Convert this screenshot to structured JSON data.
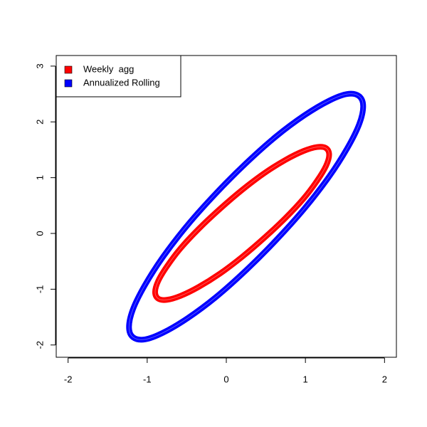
{
  "chart_data": {
    "type": "scatter",
    "xlim": [
      -2.15,
      2.15
    ],
    "ylim": [
      -2.22,
      3.19
    ],
    "xticks": [
      -2,
      -1,
      0,
      1,
      2
    ],
    "yticks": [
      -2,
      -1,
      0,
      1,
      2,
      3
    ],
    "legend": "top-left",
    "series": [
      {
        "name": "Weekly  agg",
        "color": "#ff0000",
        "x": [
          1.3,
          1.26,
          1.15,
          0.98,
          0.75,
          0.48,
          0.2,
          -0.08,
          -0.35,
          -0.58,
          -0.75,
          -0.86,
          -0.9,
          -0.86,
          -0.75,
          -0.58,
          -0.35,
          -0.08,
          0.2,
          0.48,
          0.75,
          0.98,
          1.15,
          1.26
        ],
        "values": [
          1.41,
          1.53,
          1.55,
          1.48,
          1.32,
          1.08,
          0.78,
          0.44,
          0.08,
          -0.27,
          -0.59,
          -0.85,
          -1.05,
          -1.17,
          -1.19,
          -1.12,
          -0.96,
          -0.72,
          -0.42,
          -0.08,
          0.28,
          0.63,
          0.95,
          1.21
        ]
      },
      {
        "name": "Annualized Rolling",
        "color": "#0000ff",
        "x": [
          1.73,
          1.68,
          1.53,
          1.3,
          0.99,
          0.63,
          0.25,
          -0.13,
          -0.49,
          -0.8,
          -1.03,
          -1.18,
          -1.23,
          -1.18,
          -1.03,
          -0.8,
          -0.49,
          -0.13,
          0.25,
          0.63,
          0.99,
          1.3,
          1.53,
          1.68
        ],
        "values": [
          2.28,
          2.46,
          2.5,
          2.38,
          2.12,
          1.74,
          1.26,
          0.72,
          0.15,
          -0.42,
          -0.93,
          -1.36,
          -1.68,
          -1.86,
          -1.9,
          -1.78,
          -1.52,
          -1.14,
          -0.66,
          -0.12,
          0.45,
          1.02,
          1.53,
          1.96
        ]
      }
    ]
  }
}
